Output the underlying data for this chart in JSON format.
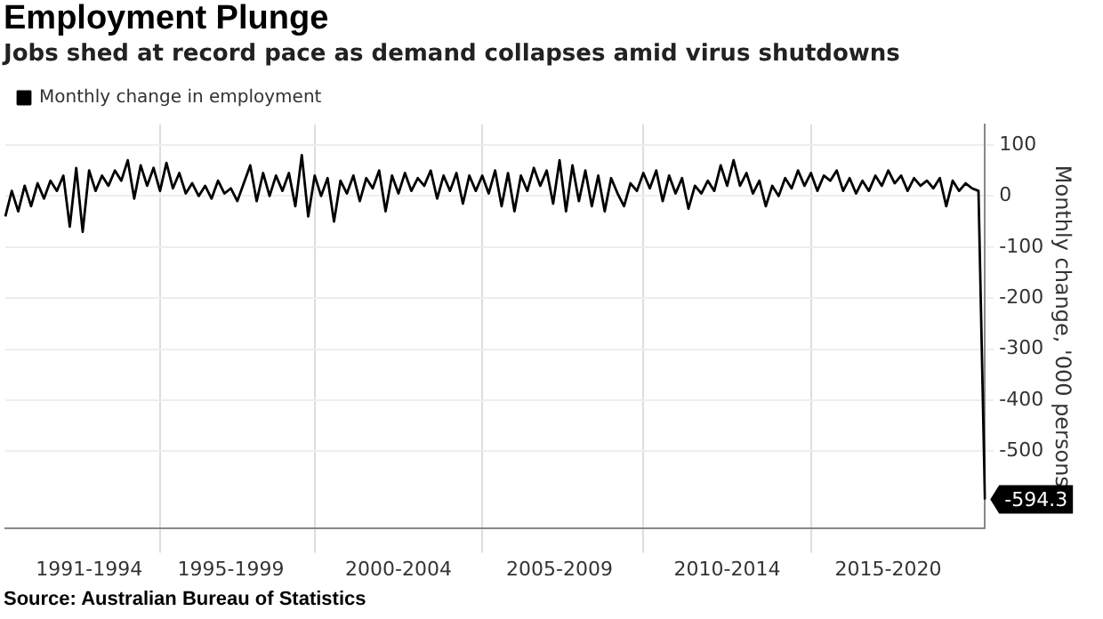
{
  "chart_data": {
    "type": "line",
    "title": "Employment Plunge",
    "subtitle": "Jobs shed at record pace as demand collapses amid virus shutdowns",
    "ylabel": "Monthly change, '000 persons",
    "annotations": [
      "Source: Australian Bureau of Statistics"
    ],
    "categories": [
      null,
      null,
      null,
      null,
      null,
      null,
      null,
      null,
      null,
      null,
      null,
      null,
      null,
      "1991-1994",
      null,
      null,
      null,
      null,
      null,
      null,
      null,
      null,
      null,
      null,
      null,
      null,
      null,
      null,
      null,
      null,
      null,
      null,
      null,
      null,
      null,
      "1995-1999",
      null,
      null,
      null,
      null,
      null,
      null,
      null,
      null,
      null,
      null,
      null,
      null,
      null,
      null,
      null,
      null,
      null,
      null,
      null,
      null,
      null,
      null,
      null,
      null,
      null,
      "2000-2004",
      null,
      null,
      null,
      null,
      null,
      null,
      null,
      null,
      null,
      null,
      null,
      null,
      null,
      null,
      null,
      null,
      null,
      null,
      null,
      null,
      null,
      null,
      null,
      null,
      "2005-2009",
      null,
      null,
      null,
      null,
      null,
      null,
      null,
      null,
      null,
      null,
      null,
      null,
      null,
      null,
      null,
      null,
      null,
      null,
      null,
      null,
      null,
      null,
      null,
      null,
      null,
      "2010-2014",
      null,
      null,
      null,
      null,
      null,
      null,
      null,
      null,
      null,
      null,
      null,
      null,
      null,
      null,
      null,
      null,
      null,
      null,
      null,
      null,
      null,
      null,
      null,
      null,
      "2015-2020",
      null,
      null,
      null,
      null,
      null,
      null,
      null,
      null,
      null,
      null,
      null,
      null,
      null,
      null,
      null
    ],
    "series": [
      {
        "name": "Monthly change in employment",
        "color": "#000000",
        "values": [
          -40,
          10,
          -30,
          20,
          -20,
          25,
          -5,
          30,
          10,
          40,
          -60,
          55,
          -70,
          50,
          10,
          40,
          20,
          50,
          30,
          70,
          -5,
          60,
          20,
          55,
          10,
          65,
          15,
          45,
          5,
          25,
          0,
          20,
          -5,
          30,
          5,
          15,
          -10,
          25,
          60,
          -10,
          45,
          0,
          40,
          10,
          45,
          -20,
          80,
          -40,
          40,
          0,
          35,
          -50,
          30,
          5,
          40,
          -10,
          35,
          15,
          50,
          -30,
          40,
          5,
          45,
          10,
          35,
          20,
          50,
          -5,
          40,
          10,
          45,
          -15,
          40,
          10,
          40,
          5,
          50,
          -20,
          45,
          -30,
          40,
          10,
          55,
          20,
          50,
          -15,
          70,
          -30,
          60,
          -10,
          50,
          -20,
          40,
          -30,
          35,
          5,
          -20,
          25,
          10,
          45,
          15,
          50,
          -10,
          40,
          5,
          35,
          -25,
          20,
          5,
          30,
          10,
          60,
          20,
          70,
          20,
          45,
          5,
          30,
          -20,
          20,
          0,
          35,
          15,
          50,
          20,
          45,
          10,
          40,
          30,
          50,
          10,
          35,
          5,
          30,
          10,
          40,
          20,
          50,
          25,
          40,
          10,
          35,
          20,
          30,
          15,
          35,
          -20,
          30,
          10,
          25,
          15,
          10,
          -594.3
        ],
        "value_labels": [
          null,
          null,
          null,
          null,
          null,
          null,
          null,
          null,
          null,
          null,
          null,
          null,
          null,
          null,
          null,
          null,
          null,
          null,
          null,
          null,
          null,
          null,
          null,
          null,
          null,
          null,
          null,
          null,
          null,
          null,
          null,
          null,
          null,
          null,
          null,
          null,
          null,
          null,
          null,
          null,
          null,
          null,
          null,
          null,
          null,
          null,
          null,
          null,
          null,
          null,
          null,
          null,
          null,
          null,
          null,
          null,
          null,
          null,
          null,
          null,
          null,
          null,
          null,
          null,
          null,
          null,
          null,
          null,
          null,
          null,
          null,
          null,
          null,
          null,
          null,
          null,
          null,
          null,
          null,
          null,
          null,
          null,
          null,
          null,
          null,
          null,
          null,
          null,
          null,
          null,
          null,
          null,
          null,
          null,
          null,
          null,
          null,
          null,
          null,
          null,
          null,
          null,
          null,
          null,
          null,
          null,
          null,
          null,
          null,
          null,
          null,
          null,
          null,
          null,
          null,
          null,
          null,
          null,
          null,
          null,
          null,
          null,
          null,
          null,
          null,
          null,
          null,
          null,
          null,
          null,
          null,
          null,
          null,
          null,
          null,
          null,
          null,
          null,
          null,
          null,
          null,
          null,
          null,
          null,
          null,
          null,
          null,
          null,
          null,
          null,
          null,
          null,
          "-594.3"
        ]
      }
    ],
    "ylim": [
      -650,
      140
    ],
    "yticks": [
      -500,
      -400,
      -300,
      -200,
      -100,
      0,
      100
    ],
    "grid": true,
    "legend": "top left",
    "marker": "none",
    "line_style": "solid"
  }
}
